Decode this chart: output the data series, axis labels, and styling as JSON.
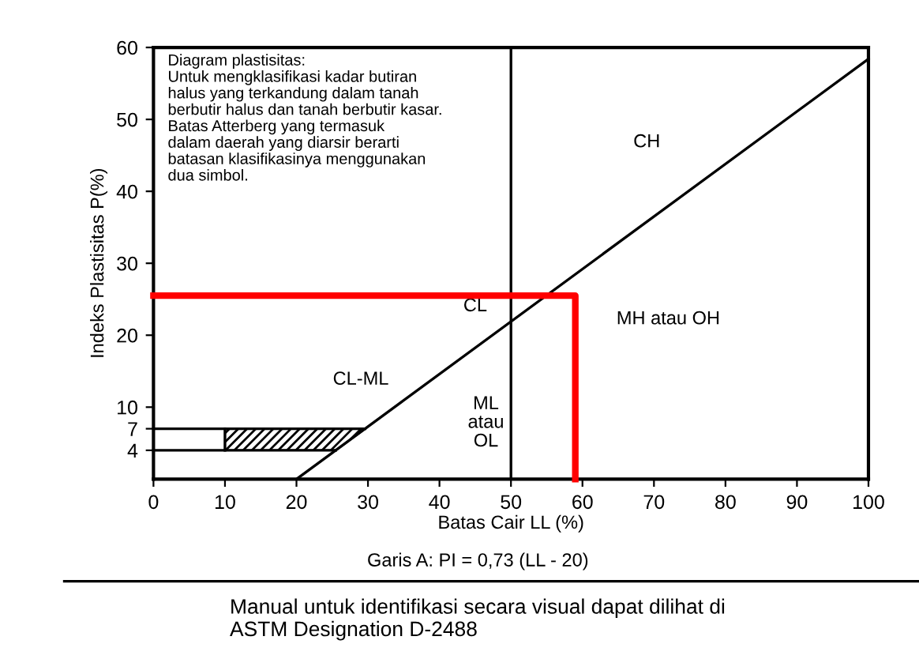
{
  "chart_data": {
    "type": "line",
    "xlabel": "Batas Cair LL (%)",
    "ylabel": "Indeks Plastisitas P(%)",
    "xlim": [
      0,
      100
    ],
    "ylim": [
      0,
      60
    ],
    "xticks": [
      0,
      10,
      20,
      30,
      40,
      50,
      60,
      70,
      80,
      90,
      100
    ],
    "yticks": [
      4,
      7,
      10,
      20,
      30,
      40,
      50,
      60
    ],
    "grid": false,
    "legend": false,
    "marker": "none",
    "line_style": "solid",
    "series": [
      {
        "color": "#000000",
        "x": [
          20,
          100
        ],
        "values": [
          0,
          58.4
        ]
      },
      {
        "color": "#000000",
        "x": [
          0,
          25.5
        ],
        "values": [
          4,
          4
        ]
      },
      {
        "color": "#000000",
        "x": [
          0,
          29.6
        ],
        "values": [
          7,
          7
        ]
      },
      {
        "color": "#000000",
        "x": [
          10,
          10
        ],
        "values": [
          4,
          7
        ]
      },
      {
        "type": "area",
        "color": "#000000",
        "x": [
          10,
          25.5,
          29.6,
          10
        ],
        "values": [
          4,
          4,
          7,
          7
        ]
      },
      {
        "color": "#ff0000",
        "x": [
          0,
          59,
          59
        ],
        "values": [
          25.5,
          25.5,
          0
        ]
      }
    ],
    "ref_lines": [
      {
        "axis": "x",
        "value": 50,
        "color": "#000000"
      }
    ],
    "annotations": [
      "Diagram plastisitas:\nUntuk mengklasifikasi kadar butiran\nhalus yang terkandung dalam tanah\nberbutir halus dan tanah berbutir kasar.\nBatas Atterberg yang termasuk\ndalam daerah yang diarsir berarti\nbatasan klasifikasinya menggunakan\ndua simbol.",
      "CH",
      "CL",
      "CL-ML",
      "ML\natau\nOL",
      "MH atau OH",
      "Garis A: PI = 0,73 (LL - 20)",
      "Manual untuk identifikasi secara visual dapat dilihat di\nASTM Designation D-2488"
    ]
  }
}
